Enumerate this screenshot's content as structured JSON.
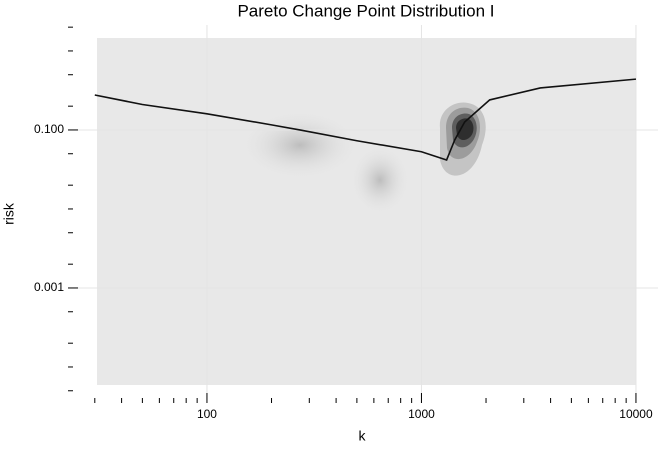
{
  "chart_data": {
    "type": "line",
    "title": "Pareto Change Point Distribution I",
    "x_label": "k",
    "y_label": "risk",
    "log_x": true,
    "log_y": true,
    "grid": true,
    "x": [
      30,
      50,
      100,
      200,
      271,
      500,
      1000,
      1310,
      1430,
      1590,
      2080,
      3580,
      10000
    ],
    "series": [
      {
        "color": "#111111",
        "values": [
          0.277,
          0.21,
          0.16,
          0.116,
          0.1,
          0.073,
          0.053,
          0.0417,
          0.075,
          0.126,
          0.24,
          0.34,
          0.44
        ]
      }
    ],
    "xlim": [
      22.5,
      12670
    ],
    "ylim": [
      3.5e-05,
      2.13
    ],
    "xticks": [
      100,
      1000,
      10000
    ],
    "yticks": [
      {
        "value": 0.1,
        "label": "0.100"
      },
      0.001
    ],
    "xminorticks": [
      30,
      40,
      50,
      60,
      70,
      80,
      90,
      200,
      300,
      400,
      500,
      600,
      700,
      800,
      900,
      2000,
      3000,
      4000,
      5000,
      6000,
      7000,
      8000,
      9000
    ],
    "yminorticks": [
      2,
      1,
      0.5,
      0.2,
      0.05,
      0.02,
      0.01,
      0.005,
      0.002,
      0.0005,
      0.0002,
      0.0001,
      5e-05
    ]
  }
}
